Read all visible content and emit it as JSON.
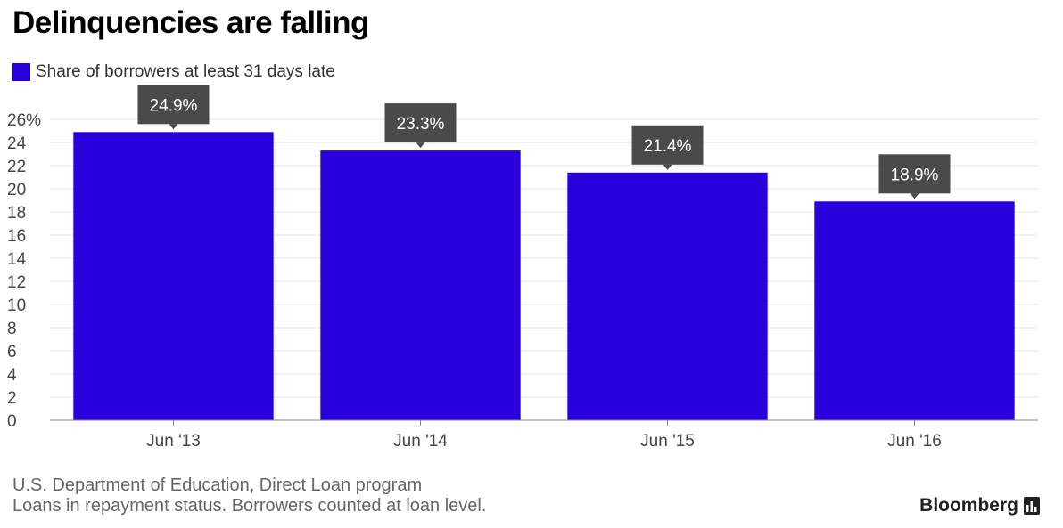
{
  "chart_data": {
    "type": "bar",
    "title": "Delinquencies are falling",
    "categories": [
      "Jun '13",
      "Jun '14",
      "Jun '15",
      "Jun '16"
    ],
    "series": [
      {
        "name": "Share of borrowers at least 31 days late",
        "values": [
          24.9,
          23.3,
          21.4,
          18.9
        ]
      }
    ],
    "data_labels": [
      "24.9%",
      "23.3%",
      "21.4%",
      "18.9%"
    ],
    "yticks": [
      "26%",
      "24",
      "22",
      "20",
      "18",
      "16",
      "14",
      "12",
      "10",
      "8",
      "6",
      "4",
      "2",
      "0"
    ],
    "ytick_values": [
      26,
      24,
      22,
      20,
      18,
      16,
      14,
      12,
      10,
      8,
      6,
      4,
      2,
      0
    ],
    "ylim": [
      0,
      26
    ],
    "xlabel": "",
    "ylabel": "",
    "grid": true,
    "legend_position": "top-left",
    "bar_color": "#2800dc",
    "label_box_color": "#4a4a4a"
  },
  "footer": {
    "source": "U.S. Department of Education, Direct Loan program",
    "note": "Loans in repayment status. Borrowers counted at loan level."
  },
  "brand": {
    "name": "Bloomberg",
    "icon": "bloomberg-chart-icon"
  }
}
